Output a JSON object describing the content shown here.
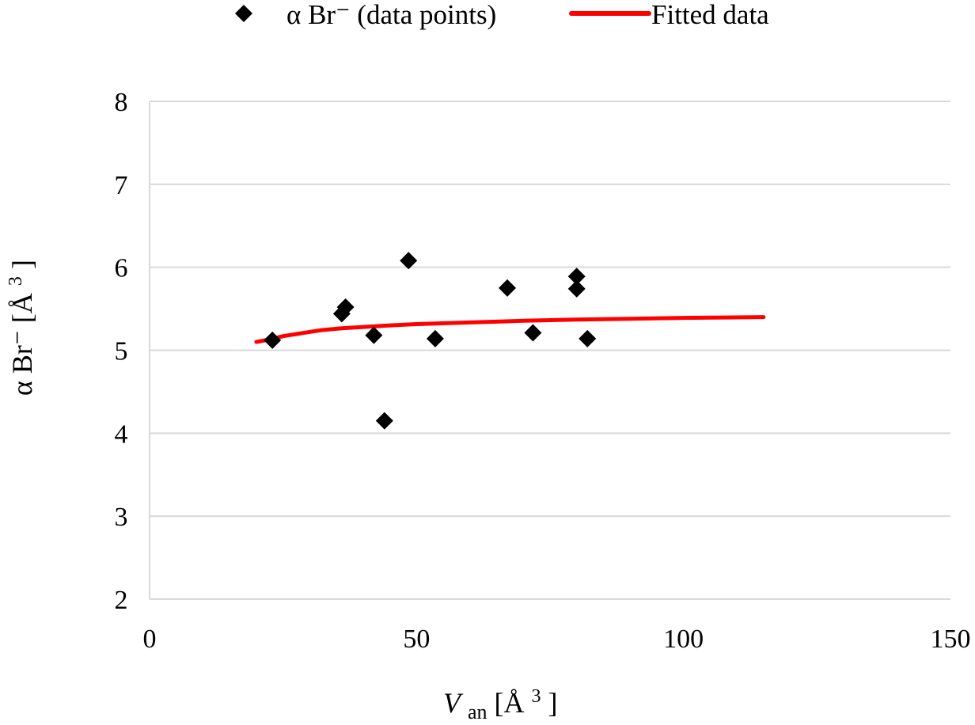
{
  "chart_data": {
    "type": "scatter",
    "title": "",
    "xlabel": {
      "main": "V",
      "sub": "an",
      "unit_open": " [Å",
      "unit_sup": "3",
      "unit_close": "]"
    },
    "ylabel": {
      "main": "α Br⁻ ",
      "unit_open": " [Å",
      "unit_sup": "3",
      "unit_close": "]"
    },
    "xlim": [
      0,
      150
    ],
    "ylim": [
      2,
      8
    ],
    "x_ticks": [
      0,
      50,
      100,
      150
    ],
    "y_ticks": [
      2,
      3,
      4,
      5,
      6,
      7,
      8
    ],
    "grid": "horizontal",
    "legend_position": "top",
    "series": [
      {
        "name": "α Br⁻ (data points)",
        "kind": "scatter",
        "marker": "diamond",
        "color": "#000000",
        "points": [
          {
            "x": 23,
            "y": 5.12
          },
          {
            "x": 36,
            "y": 5.44
          },
          {
            "x": 36.7,
            "y": 5.52
          },
          {
            "x": 42,
            "y": 5.18
          },
          {
            "x": 44,
            "y": 4.15
          },
          {
            "x": 48.5,
            "y": 6.08
          },
          {
            "x": 53.5,
            "y": 5.14
          },
          {
            "x": 67,
            "y": 5.75
          },
          {
            "x": 71.8,
            "y": 5.21
          },
          {
            "x": 80,
            "y": 5.89
          },
          {
            "x": 80,
            "y": 5.74
          },
          {
            "x": 82,
            "y": 5.14
          }
        ]
      },
      {
        "name": "Fitted data",
        "kind": "line",
        "color": "#ff0000",
        "points": [
          {
            "x": 20,
            "y": 5.1
          },
          {
            "x": 22.5,
            "y": 5.13
          },
          {
            "x": 25,
            "y": 5.17
          },
          {
            "x": 28,
            "y": 5.2
          },
          {
            "x": 32,
            "y": 5.24
          },
          {
            "x": 36,
            "y": 5.265
          },
          {
            "x": 40,
            "y": 5.28
          },
          {
            "x": 45,
            "y": 5.3
          },
          {
            "x": 50,
            "y": 5.315
          },
          {
            "x": 60,
            "y": 5.335
          },
          {
            "x": 70,
            "y": 5.355
          },
          {
            "x": 80,
            "y": 5.37
          },
          {
            "x": 90,
            "y": 5.38
          },
          {
            "x": 100,
            "y": 5.39
          },
          {
            "x": 108,
            "y": 5.395
          },
          {
            "x": 115,
            "y": 5.4
          }
        ]
      }
    ]
  }
}
